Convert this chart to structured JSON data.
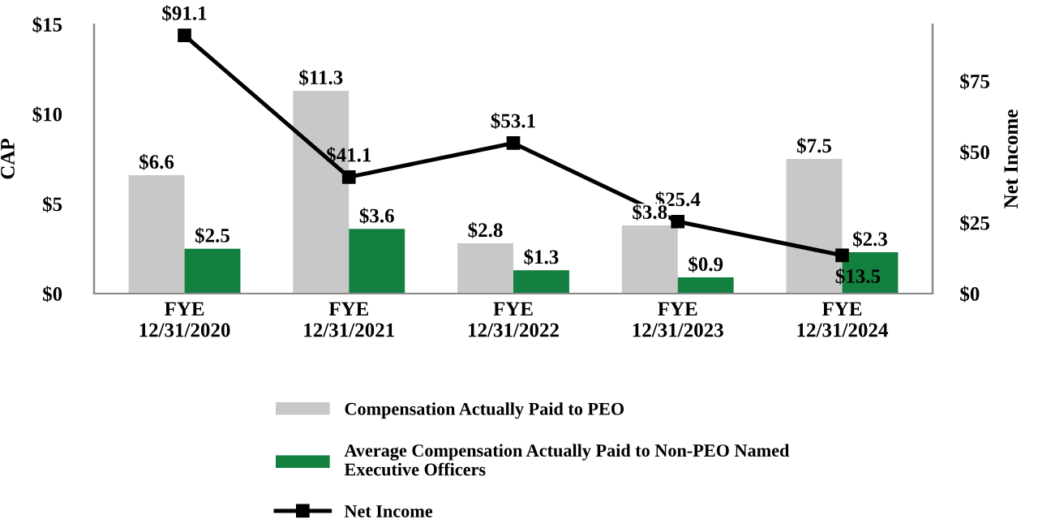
{
  "chart_data": {
    "type": "bar",
    "ylabel": "CAP",
    "y2label": "Net Income",
    "categories": [
      "FYE\n12/31/2020",
      "FYE\n12/31/2021",
      "FYE\n12/31/2022",
      "FYE\n12/31/2023",
      "FYE\n12/31/2024"
    ],
    "series": [
      {
        "name": "Compensation Actually Paid to PEO",
        "color": "#c8c8c8",
        "values": [
          6.6,
          11.3,
          2.8,
          3.8,
          7.5
        ],
        "value_labels": [
          "$6.6",
          "$11.3",
          "$2.8",
          "$3.8",
          "$7.5"
        ]
      },
      {
        "name": "Average Compensation Actually Paid to Non-PEO Named\nExecutive Officers",
        "color": "#138040",
        "values": [
          2.5,
          3.6,
          1.3,
          0.9,
          2.3
        ],
        "value_labels": [
          "$2.5",
          "$3.6",
          "$1.3",
          "$0.9",
          "$2.3"
        ]
      },
      {
        "name": "Net Income",
        "type": "line",
        "axis": "y2",
        "color": "#000000",
        "marker": "square",
        "values": [
          91.1,
          41.1,
          53.1,
          25.4,
          13.5
        ],
        "value_labels": [
          "$91.1",
          "$41.1",
          "$53.1",
          "$25.4",
          "$13.5"
        ]
      }
    ],
    "ylim": [
      0,
      15
    ],
    "yticks": [
      {
        "value": 0,
        "label": "$0"
      },
      {
        "value": 5,
        "label": "$5"
      },
      {
        "value": 10,
        "label": "$10"
      },
      {
        "value": 15,
        "label": "$15"
      }
    ],
    "y2lim": [
      0,
      95
    ],
    "y2ticks": [
      {
        "value": 0,
        "label": "$0"
      },
      {
        "value": 25,
        "label": "$25"
      },
      {
        "value": 50,
        "label": "$50"
      },
      {
        "value": 75,
        "label": "$75"
      }
    ],
    "grid": false,
    "legend": "bottom"
  }
}
